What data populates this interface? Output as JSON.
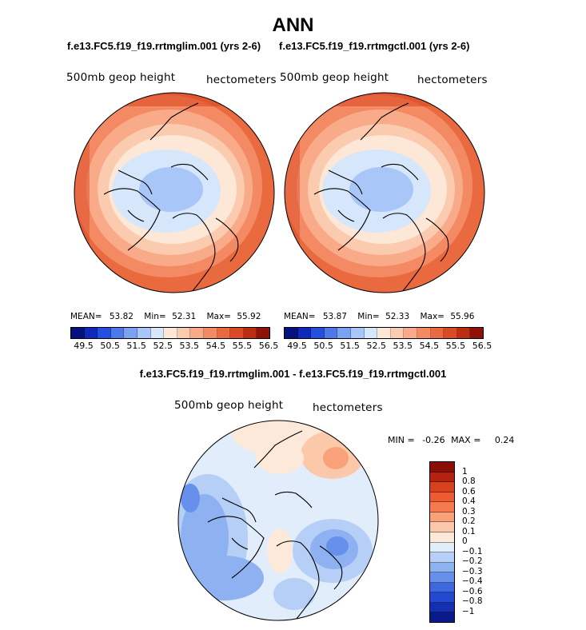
{
  "title": "ANN",
  "panels": [
    {
      "case": "f.e13.FC5.f19_f19.rrtmglim.001 (yrs 2-6)",
      "variable": "500mb geop height",
      "units": "hectometers",
      "stats": {
        "mean_label": "MEAN=",
        "mean": "53.82",
        "min_label": "Min=",
        "min": "52.31",
        "max_label": "Max=",
        "max": "55.92"
      }
    },
    {
      "case": "f.e13.FC5.f19_f19.rrtmgctl.001 (yrs 2-6)",
      "variable": "500mb geop height",
      "units": "hectometers",
      "stats": {
        "mean_label": "MEAN=",
        "mean": "53.87",
        "min_label": "Min=",
        "min": "52.33",
        "max_label": "Max=",
        "max": "55.96"
      }
    }
  ],
  "colorbar_abs": {
    "colors": [
      "#05117f",
      "#0e2ab8",
      "#2450df",
      "#4d7ae8",
      "#7aa2f0",
      "#a8c6f7",
      "#d6e7fb",
      "#fde7d6",
      "#fbcbaf",
      "#f9aa88",
      "#f48a63",
      "#ea6a40",
      "#da4a25",
      "#bb2e12",
      "#8f1208"
    ],
    "ticks": [
      "49.5",
      "50.5",
      "51.5",
      "52.5",
      "53.5",
      "54.5",
      "55.5",
      "56.5"
    ]
  },
  "difference": {
    "title": "f.e13.FC5.f19_f19.rrtmglim.001 - f.e13.FC5.f19_f19.rrtmgctl.001",
    "variable": "500mb geop height",
    "units": "hectometers",
    "min_label": "MIN =",
    "min": "-0.26",
    "max_label": "MAX =",
    "max": "0.24",
    "colors": [
      "#8a0f06",
      "#b42310",
      "#d9401e",
      "#ee5a32",
      "#f57a4e",
      "#f9a27a",
      "#fcc8aa",
      "#fde9d9",
      "#e1edfa",
      "#b5cff6",
      "#8eb1f2",
      "#6690ec",
      "#3e68e0",
      "#2348d1",
      "#1430b0",
      "#0a1a8a"
    ],
    "ticks": [
      "1",
      "0.8",
      "0.6",
      "0.4",
      "0.3",
      "0.2",
      "0.1",
      "0",
      "−0.1",
      "−0.2",
      "−0.3",
      "−0.4",
      "−0.6",
      "−0.8",
      "−1"
    ]
  }
}
